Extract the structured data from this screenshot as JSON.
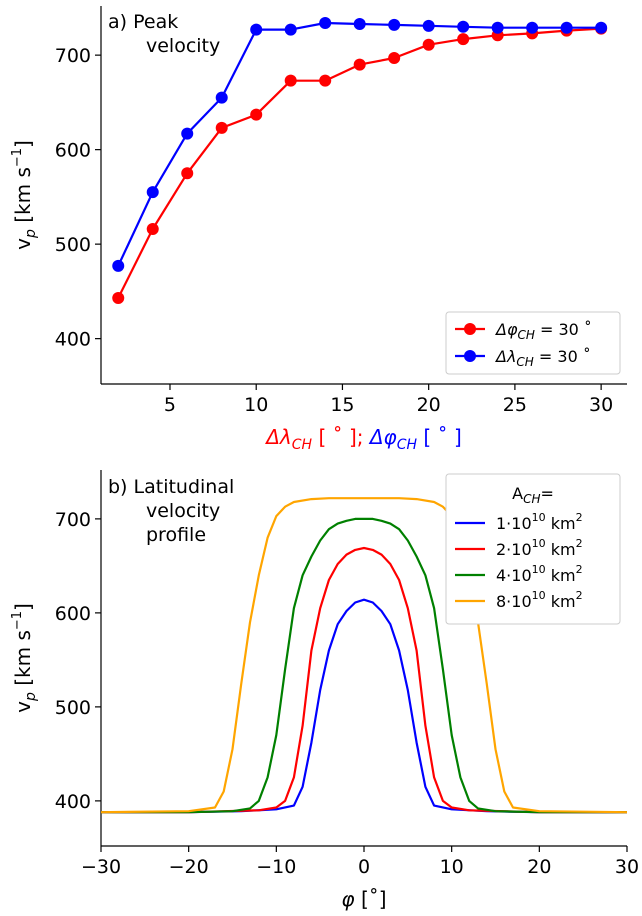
{
  "chart_data": [
    {
      "type": "line",
      "panel_label": [
        "a) Peak",
        "velocity"
      ],
      "xlabel": {
        "red_part": "Δλ",
        "red_sub": "CH",
        "red_tail": " [ ˚ ];",
        "blue_part": " Δφ",
        "blue_sub": "CH",
        "blue_tail": " [ ˚ ]"
      },
      "ylabel": {
        "base": "v",
        "sub": "p",
        "unit": " [km s",
        "sup": "−1",
        "close": "]"
      },
      "xlim": [
        1,
        31.5
      ],
      "ylim": [
        352,
        752
      ],
      "xticks": [
        5,
        10,
        15,
        20,
        25,
        30
      ],
      "yticks": [
        400,
        500,
        600,
        700
      ],
      "grid": false,
      "legend_position": "bottom-right",
      "series": [
        {
          "name": "Δφ_CH = 30˚",
          "legend": {
            "main": "Δφ",
            "sub": "CH",
            "tail": " = 30 ˚"
          },
          "color": "#ff0000",
          "marker": "circle",
          "x": [
            2,
            4,
            6,
            8,
            10,
            12,
            14,
            16,
            18,
            20,
            22,
            24,
            26,
            28,
            30
          ],
          "y": [
            443,
            516,
            575,
            623,
            637,
            673,
            673,
            690,
            697,
            711,
            717,
            721,
            723,
            726,
            728
          ]
        },
        {
          "name": "Δλ_CH = 30˚",
          "legend": {
            "main": "Δλ",
            "sub": "CH",
            "tail": " = 30 ˚"
          },
          "color": "#0000ff",
          "marker": "circle",
          "x": [
            2,
            4,
            6,
            8,
            10,
            12,
            14,
            16,
            18,
            20,
            22,
            24,
            26,
            28,
            30
          ],
          "y": [
            477,
            555,
            617,
            655,
            727,
            727,
            734,
            733,
            732,
            731,
            730,
            729,
            729,
            729,
            729
          ]
        }
      ]
    },
    {
      "type": "line",
      "panel_label": [
        "b) Latitudinal",
        "velocity",
        "profile"
      ],
      "xlabel": {
        "main": "φ",
        "tail": " [˚]"
      },
      "ylabel": {
        "base": "v",
        "sub": "p",
        "unit": " [km s",
        "sup": "−1",
        "close": "]"
      },
      "xlim": [
        -30,
        30
      ],
      "ylim": [
        352,
        752
      ],
      "xticks": [
        -30,
        -20,
        -10,
        0,
        10,
        20,
        30
      ],
      "xtick_labels": [
        "−30",
        "−20",
        "−10",
        "0",
        "10",
        "20",
        "30"
      ],
      "yticks": [
        400,
        500,
        600,
        700
      ],
      "grid": false,
      "legend_position": "top-right",
      "legend_title": {
        "main": "A",
        "sub": "CH",
        "tail": "="
      },
      "series": [
        {
          "name": "1·10^10 km^2",
          "legend": {
            "main": "1·10",
            "sup": "10",
            "tail": " km",
            "sup2": "2"
          },
          "color": "#0000ff",
          "x": [
            -30,
            -20,
            -14,
            -10,
            -8,
            -7,
            -6,
            -5,
            -4,
            -3,
            -2,
            -1,
            0,
            1,
            2,
            3,
            4,
            5,
            6,
            7,
            8,
            10,
            14,
            20,
            30
          ],
          "y": [
            388,
            388,
            389,
            391,
            395,
            415,
            462,
            518,
            560,
            588,
            602,
            611,
            614,
            611,
            602,
            588,
            560,
            518,
            462,
            415,
            395,
            391,
            389,
            388,
            388
          ]
        },
        {
          "name": "2·10^10 km^2",
          "legend": {
            "main": "2·10",
            "sup": "10",
            "tail": " km",
            "sup2": "2"
          },
          "color": "#ff0000",
          "x": [
            -30,
            -20,
            -12,
            -10,
            -9,
            -8,
            -7,
            -6,
            -5,
            -4,
            -3,
            -2,
            -1,
            0,
            1,
            2,
            3,
            4,
            5,
            6,
            7,
            8,
            9,
            10,
            12,
            20,
            30
          ],
          "y": [
            388,
            388,
            390,
            393,
            400,
            425,
            480,
            560,
            605,
            635,
            652,
            662,
            667,
            669,
            667,
            662,
            652,
            635,
            605,
            560,
            480,
            425,
            400,
            393,
            390,
            388,
            388
          ]
        },
        {
          "name": "4·10^10 km^2",
          "legend": {
            "main": "4·10",
            "sup": "10",
            "tail": " km",
            "sup2": "2"
          },
          "color": "#008000",
          "x": [
            -30,
            -20,
            -15,
            -13,
            -12,
            -11,
            -10,
            -9,
            -8,
            -7,
            -6,
            -5,
            -4,
            -3,
            -2,
            -1,
            0,
            1,
            2,
            3,
            4,
            5,
            6,
            7,
            8,
            9,
            10,
            11,
            12,
            13,
            15,
            20,
            30
          ],
          "y": [
            388,
            388,
            389,
            392,
            400,
            425,
            470,
            540,
            605,
            640,
            660,
            677,
            689,
            695,
            698,
            700,
            700,
            700,
            698,
            695,
            689,
            677,
            660,
            640,
            605,
            540,
            470,
            425,
            400,
            392,
            389,
            388,
            388
          ]
        },
        {
          "name": "8·10^10 km^2",
          "legend": {
            "main": "8·10",
            "sup": "10",
            "tail": " km",
            "sup2": "2"
          },
          "color": "#ffa500",
          "x": [
            -30,
            -20,
            -17,
            -16,
            -15,
            -14,
            -13,
            -12,
            -11,
            -10,
            -9,
            -8,
            -6,
            -4,
            -2,
            0,
            2,
            4,
            6,
            8,
            9,
            10,
            11,
            12,
            13,
            14,
            15,
            16,
            17,
            20,
            30
          ],
          "y": [
            388,
            389,
            393,
            410,
            455,
            525,
            590,
            640,
            680,
            703,
            713,
            718,
            721,
            722,
            722,
            722,
            722,
            722,
            721,
            718,
            713,
            703,
            680,
            640,
            590,
            525,
            455,
            410,
            393,
            389,
            388
          ]
        }
      ]
    }
  ]
}
